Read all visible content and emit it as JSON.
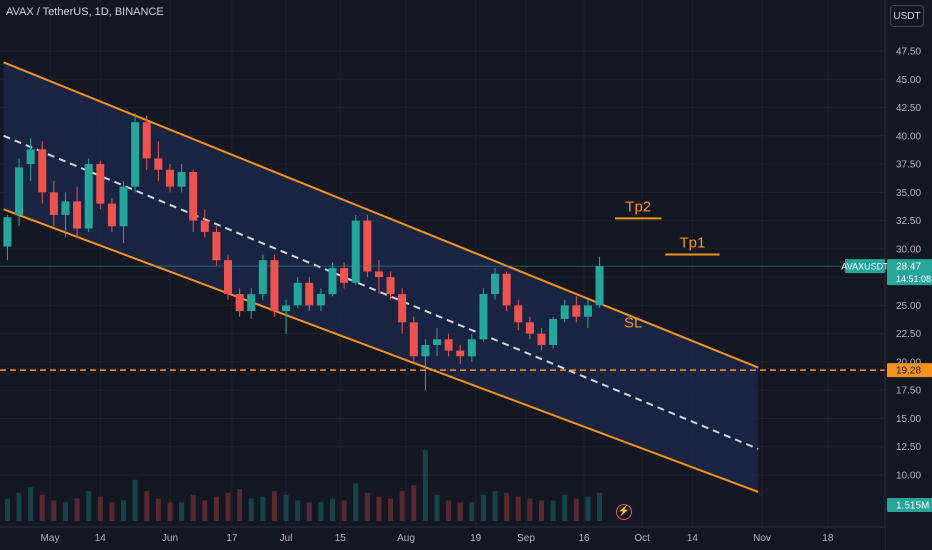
{
  "header": {
    "symbol_title": "AVAX / TetherUS, 1D, BINANCE",
    "currency": "USDT"
  },
  "price_axis": {
    "ticks": [
      "47.50",
      "45.00",
      "42.50",
      "40.00",
      "37.50",
      "35.00",
      "32.50",
      "30.00",
      "27.50",
      "25.00",
      "22.50",
      "20.00",
      "17.50",
      "15.00",
      "12.50",
      "10.00"
    ],
    "last_label": "AVAXUSDT",
    "last_price": "28.47",
    "countdown": "14:51:08",
    "level_price": "19.28",
    "volume_label": "1.515M"
  },
  "time_axis": [
    "May",
    "14",
    "Jun",
    "17",
    "Jul",
    "15",
    "Aug",
    "19",
    "Sep",
    "16",
    "Oct",
    "14",
    "Nov",
    "18"
  ],
  "annotations": {
    "tp2": "Tp2",
    "tp1": "Tp1",
    "sl": "SL"
  },
  "colors": {
    "background": "#131722",
    "up": "#26a69a",
    "down": "#ef5350",
    "channel": "#f7931a",
    "channel_fill": "#1a2747",
    "midline": "#d1d4dc",
    "price_tag": "#26a69a",
    "level_tag": "#f7931a"
  },
  "icons": {
    "lightning": "lightning-icon"
  },
  "chart_data": {
    "type": "candlestick",
    "symbol": "AVAX / TetherUS",
    "interval": "1D",
    "exchange": "BINANCE",
    "yscale": "linear",
    "ylim": [
      9.0,
      49.0
    ],
    "last_price": 28.47,
    "horizontal_level": 19.28,
    "series": [
      {
        "date": "Apr 20",
        "o": 30.2,
        "h": 33.0,
        "l": 29.0,
        "c": 32.8
      },
      {
        "date": "Apr 23",
        "o": 33.0,
        "h": 38.0,
        "l": 32.0,
        "c": 37.2
      },
      {
        "date": "Apr 26",
        "o": 37.5,
        "h": 39.8,
        "l": 36.0,
        "c": 38.8
      },
      {
        "date": "Apr 29",
        "o": 38.8,
        "h": 39.5,
        "l": 34.0,
        "c": 35.0
      },
      {
        "date": "May 2",
        "o": 35.0,
        "h": 36.0,
        "l": 32.0,
        "c": 33.0
      },
      {
        "date": "May 5",
        "o": 33.0,
        "h": 35.0,
        "l": 31.0,
        "c": 34.2
      },
      {
        "date": "May 8",
        "o": 34.2,
        "h": 35.5,
        "l": 31.0,
        "c": 31.8
      },
      {
        "date": "May 11",
        "o": 31.8,
        "h": 38.0,
        "l": 31.5,
        "c": 37.5
      },
      {
        "date": "May 14",
        "o": 37.5,
        "h": 37.8,
        "l": 33.5,
        "c": 34.0
      },
      {
        "date": "May 17",
        "o": 34.0,
        "h": 34.5,
        "l": 31.5,
        "c": 32.0
      },
      {
        "date": "May 20",
        "o": 32.0,
        "h": 36.0,
        "l": 30.5,
        "c": 35.5
      },
      {
        "date": "May 23",
        "o": 35.5,
        "h": 42.0,
        "l": 35.0,
        "c": 41.2
      },
      {
        "date": "May 26",
        "o": 41.2,
        "h": 41.8,
        "l": 37.0,
        "c": 38.0
      },
      {
        "date": "May 29",
        "o": 38.0,
        "h": 39.5,
        "l": 36.0,
        "c": 37.0
      },
      {
        "date": "Jun 1",
        "o": 37.0,
        "h": 37.5,
        "l": 35.0,
        "c": 35.5
      },
      {
        "date": "Jun 4",
        "o": 35.5,
        "h": 37.5,
        "l": 35.0,
        "c": 36.8
      },
      {
        "date": "Jun 7",
        "o": 36.8,
        "h": 37.0,
        "l": 31.5,
        "c": 32.5
      },
      {
        "date": "Jun 10",
        "o": 32.5,
        "h": 33.5,
        "l": 31.0,
        "c": 31.5
      },
      {
        "date": "Jun 13",
        "o": 31.5,
        "h": 32.0,
        "l": 28.5,
        "c": 29.0
      },
      {
        "date": "Jun 16",
        "o": 29.0,
        "h": 29.5,
        "l": 25.5,
        "c": 26.0
      },
      {
        "date": "Jun 19",
        "o": 26.0,
        "h": 26.5,
        "l": 24.0,
        "c": 24.5
      },
      {
        "date": "Jun 22",
        "o": 24.5,
        "h": 26.5,
        "l": 23.8,
        "c": 26.0
      },
      {
        "date": "Jun 25",
        "o": 26.0,
        "h": 29.5,
        "l": 25.5,
        "c": 29.0
      },
      {
        "date": "Jun 28",
        "o": 29.0,
        "h": 29.5,
        "l": 24.0,
        "c": 24.5
      },
      {
        "date": "Jul 1",
        "o": 24.5,
        "h": 25.5,
        "l": 22.5,
        "c": 25.0
      },
      {
        "date": "Jul 4",
        "o": 25.0,
        "h": 27.5,
        "l": 24.8,
        "c": 27.0
      },
      {
        "date": "Jul 7",
        "o": 27.0,
        "h": 27.5,
        "l": 24.5,
        "c": 25.0
      },
      {
        "date": "Jul 10",
        "o": 25.0,
        "h": 26.5,
        "l": 24.5,
        "c": 26.0
      },
      {
        "date": "Jul 13",
        "o": 26.0,
        "h": 28.8,
        "l": 25.8,
        "c": 28.3
      },
      {
        "date": "Jul 16",
        "o": 28.3,
        "h": 28.8,
        "l": 26.5,
        "c": 27.0
      },
      {
        "date": "Jul 19",
        "o": 27.0,
        "h": 33.0,
        "l": 26.8,
        "c": 32.5
      },
      {
        "date": "Jul 22",
        "o": 32.5,
        "h": 33.0,
        "l": 27.5,
        "c": 28.0
      },
      {
        "date": "Jul 25",
        "o": 28.0,
        "h": 29.0,
        "l": 26.0,
        "c": 27.5
      },
      {
        "date": "Jul 28",
        "o": 27.5,
        "h": 28.0,
        "l": 25.5,
        "c": 26.0
      },
      {
        "date": "Jul 31",
        "o": 26.0,
        "h": 26.5,
        "l": 22.5,
        "c": 23.5
      },
      {
        "date": "Aug 3",
        "o": 23.5,
        "h": 24.0,
        "l": 20.0,
        "c": 20.5
      },
      {
        "date": "Aug 6",
        "o": 20.5,
        "h": 22.0,
        "l": 17.5,
        "c": 21.5
      },
      {
        "date": "Aug 9",
        "o": 21.5,
        "h": 23.0,
        "l": 20.5,
        "c": 22.0
      },
      {
        "date": "Aug 12",
        "o": 22.0,
        "h": 22.5,
        "l": 20.5,
        "c": 21.0
      },
      {
        "date": "Aug 15",
        "o": 21.0,
        "h": 21.5,
        "l": 19.8,
        "c": 20.5
      },
      {
        "date": "Aug 18",
        "o": 20.5,
        "h": 22.5,
        "l": 20.0,
        "c": 22.0
      },
      {
        "date": "Aug 21",
        "o": 22.0,
        "h": 26.5,
        "l": 21.8,
        "c": 26.0
      },
      {
        "date": "Aug 24",
        "o": 26.0,
        "h": 28.3,
        "l": 25.5,
        "c": 27.8
      },
      {
        "date": "Aug 27",
        "o": 27.8,
        "h": 28.0,
        "l": 24.5,
        "c": 25.0
      },
      {
        "date": "Aug 30",
        "o": 25.0,
        "h": 25.5,
        "l": 22.8,
        "c": 23.5
      },
      {
        "date": "Sep 2",
        "o": 23.5,
        "h": 24.0,
        "l": 22.0,
        "c": 22.5
      },
      {
        "date": "Sep 5",
        "o": 22.5,
        "h": 23.0,
        "l": 21.0,
        "c": 21.5
      },
      {
        "date": "Sep 8",
        "o": 21.5,
        "h": 24.0,
        "l": 21.2,
        "c": 23.8
      },
      {
        "date": "Sep 11",
        "o": 23.8,
        "h": 25.5,
        "l": 23.5,
        "c": 25.0
      },
      {
        "date": "Sep 14",
        "o": 25.0,
        "h": 25.8,
        "l": 23.5,
        "c": 24.0
      },
      {
        "date": "Sep 17",
        "o": 24.0,
        "h": 25.5,
        "l": 23.0,
        "c": 25.0
      },
      {
        "date": "Sep 20",
        "o": 25.0,
        "h": 29.3,
        "l": 24.8,
        "c": 28.47
      }
    ],
    "volume": [
      1.2,
      1.5,
      1.8,
      1.4,
      1.1,
      1.0,
      1.2,
      1.6,
      1.3,
      1.0,
      1.1,
      2.2,
      1.6,
      1.2,
      1.0,
      1.0,
      1.4,
      1.1,
      1.3,
      1.5,
      1.7,
      1.2,
      1.3,
      1.6,
      1.4,
      1.1,
      1.0,
      1.0,
      1.2,
      1.1,
      2.0,
      1.5,
      1.3,
      1.2,
      1.6,
      1.9,
      3.8,
      1.4,
      1.1,
      1.0,
      1.0,
      1.4,
      1.6,
      1.5,
      1.3,
      1.2,
      1.1,
      1.1,
      1.4,
      1.2,
      1.3,
      1.515
    ],
    "channel": {
      "upper": [
        {
          "date": "Apr 19",
          "price": 46.5
        },
        {
          "date": "Oct 31",
          "price": 19.5
        }
      ],
      "lower": [
        {
          "date": "Apr 19",
          "price": 33.5
        },
        {
          "date": "Oct 31",
          "price": 8.5
        }
      ],
      "midline": [
        {
          "date": "Apr 19",
          "price": 40.0
        },
        {
          "date": "Oct 31",
          "price": 12.3
        }
      ]
    },
    "targets": [
      {
        "label": "Tp2",
        "price": 32.7,
        "from": "Sep 24",
        "to": "Oct 6"
      },
      {
        "label": "Tp1",
        "price": 29.5,
        "from": "Oct 7",
        "to": "Oct 21"
      },
      {
        "label": "SL",
        "price": 23.5,
        "date": "Sep 24"
      }
    ]
  }
}
